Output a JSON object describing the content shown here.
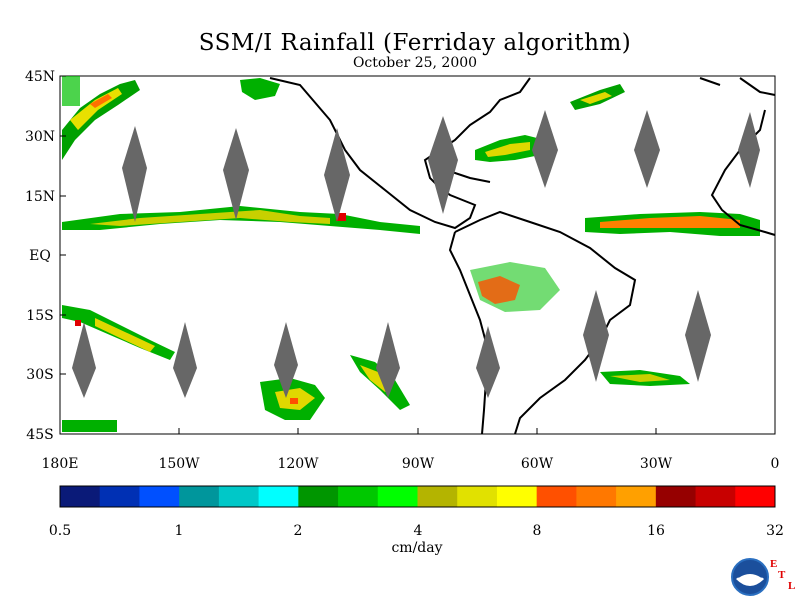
{
  "title": "SSM/I Rainfall (Ferriday algorithm)",
  "date": "October 25, 2000",
  "lat_labels": [
    "45N",
    "30N",
    "15N",
    "EQ",
    "15S",
    "30S",
    "45S"
  ],
  "lon_labels": [
    "180E",
    "150W",
    "120W",
    "90W",
    "60W",
    "30W",
    "0"
  ],
  "colorbar": {
    "unit": "cm/day",
    "tick_labels": [
      "0.5",
      "1",
      "2",
      "4",
      "8",
      "16",
      "32"
    ],
    "colors": [
      "#0a1a78",
      "#0030b4",
      "#0050ff",
      "#00969c",
      "#00c8c8",
      "#00ffff",
      "#009600",
      "#00c800",
      "#00ff00",
      "#b4b400",
      "#e1e100",
      "#ffff00",
      "#ff5000",
      "#ff7800",
      "#ffa000",
      "#960000",
      "#c80000",
      "#ff0000"
    ]
  },
  "logo": {
    "name": "noaa-logo",
    "letters": [
      "E",
      "T",
      "L"
    ]
  }
}
